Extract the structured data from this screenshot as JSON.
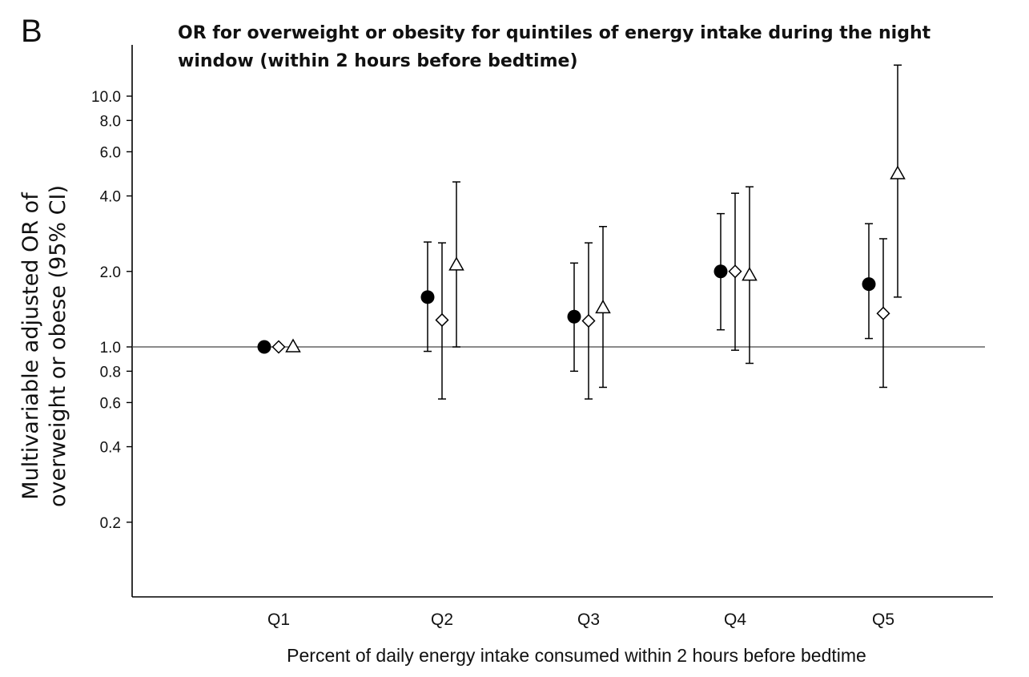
{
  "panel_label": "B",
  "chart_data": {
    "type": "scatter",
    "title_lines": [
      "OR for overweight or obesity for quintiles of energy intake during the night",
      "window (within 2 hours before bedtime)"
    ],
    "xlabel": "Percent of daily energy intake consumed within 2 hours before bedtime",
    "ylabel_lines": [
      "Multivariable adjusted OR of",
      "overweight or obese (95% CI)"
    ],
    "y_scale": "log",
    "ylim": [
      0.1,
      14
    ],
    "reference_line": 1.0,
    "yticks": [
      0.2,
      0.4,
      0.6,
      0.8,
      1.0,
      2.0,
      4.0,
      6.0,
      8.0,
      10.0
    ],
    "ytick_labels": [
      "0.2",
      "0.4",
      "0.6",
      "0.8",
      "1.0",
      "2.0",
      "4.0",
      "6.0",
      "8.0",
      "10.0"
    ],
    "categories": [
      "Q1",
      "Q2",
      "Q3",
      "Q4",
      "Q5"
    ],
    "grid": false,
    "legend": "none",
    "series": [
      {
        "marker": "filled-circle",
        "color": "#000000",
        "points": [
          {
            "or": 1.0,
            "lo": 1.0,
            "hi": 1.0
          },
          {
            "or": 1.58,
            "lo": 0.96,
            "hi": 2.62
          },
          {
            "or": 1.32,
            "lo": 0.8,
            "hi": 2.16
          },
          {
            "or": 2.0,
            "lo": 1.17,
            "hi": 3.4
          },
          {
            "or": 1.78,
            "lo": 1.08,
            "hi": 3.1
          }
        ]
      },
      {
        "marker": "open-diamond",
        "color": "#000000",
        "points": [
          {
            "or": 1.0,
            "lo": 1.0,
            "hi": 1.0
          },
          {
            "or": 1.28,
            "lo": 0.62,
            "hi": 2.6
          },
          {
            "or": 1.27,
            "lo": 0.62,
            "hi": 2.6
          },
          {
            "or": 2.0,
            "lo": 0.97,
            "hi": 4.1
          },
          {
            "or": 1.36,
            "lo": 0.69,
            "hi": 2.7
          }
        ]
      },
      {
        "marker": "open-triangle",
        "color": "#000000",
        "points": [
          {
            "or": 1.0,
            "lo": 1.0,
            "hi": 1.0
          },
          {
            "or": 2.12,
            "lo": 1.0,
            "hi": 4.55
          },
          {
            "or": 1.43,
            "lo": 0.69,
            "hi": 3.02
          },
          {
            "or": 1.93,
            "lo": 0.86,
            "hi": 4.35
          },
          {
            "or": 4.9,
            "lo": 1.58,
            "hi": 13.3
          }
        ]
      }
    ]
  }
}
